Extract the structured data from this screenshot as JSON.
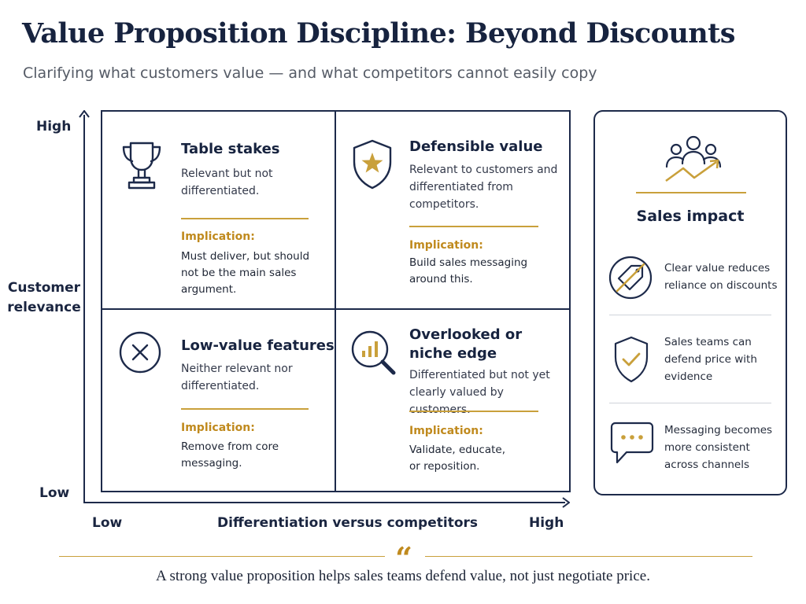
{
  "header": {
    "title": "Value Proposition Discipline: Beyond Discounts",
    "subtitle": "Clarifying what customers value — and what competitors cannot easily copy"
  },
  "axes": {
    "y_high": "High",
    "y_low": "Low",
    "y_label": "Customer relevance",
    "x_low": "Low",
    "x_label": "Differentiation versus competitors",
    "x_high": "High"
  },
  "quadrants": {
    "table_stakes": {
      "icon": "trophy-icon",
      "title": "Table stakes",
      "description": "Relevant but not differentiated.",
      "implication_label": "Implication:",
      "implication": "Must deliver, but should not be the main sales argument."
    },
    "defensible_value": {
      "icon": "shield-star-icon",
      "title": "Defensible value",
      "description": "Relevant to customers and differentiated from competitors.",
      "implication_label": "Implication:",
      "implication": "Build sales messaging around this."
    },
    "low_value": {
      "icon": "x-circle-icon",
      "title": "Low-value features",
      "description": "Neither relevant nor differentiated.",
      "implication_label": "Implication:",
      "implication": "Remove from core messaging."
    },
    "overlooked": {
      "icon": "magnifier-chart-icon",
      "title": "Overlooked or niche edge",
      "description": "Differentiated but not yet clearly valued by customers.",
      "implication_label": "Implication:",
      "implication": "Validate, educate, or reposition."
    }
  },
  "sales_impact": {
    "icon": "team-growth-icon",
    "title": "Sales impact",
    "items": [
      {
        "icon": "no-discount-tag-icon",
        "text": "Clear value reduces reliance on discounts"
      },
      {
        "icon": "shield-check-icon",
        "text": "Sales teams can defend price with evidence"
      },
      {
        "icon": "speech-bubble-icon",
        "text": "Messaging becomes more consistent across channels"
      }
    ]
  },
  "footer": {
    "quote_mark": "“",
    "quote": "A strong value proposition helps sales teams defend value, not just negotiate price."
  },
  "colors": {
    "navy": "#1d2a4a",
    "gold": "#c9a03b",
    "gold_text": "#c08a1e"
  }
}
